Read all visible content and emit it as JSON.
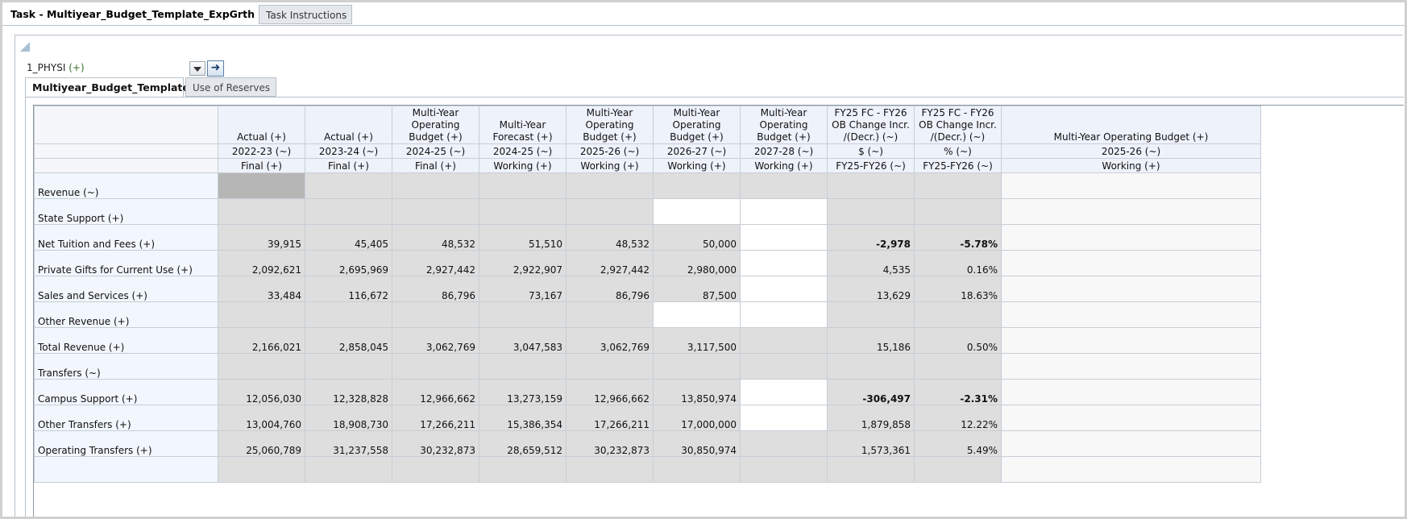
{
  "task_tabs": {
    "active": "Task - Multiyear_Budget_Template_ExpGrth",
    "inactive": "Task Instructions"
  },
  "pov": {
    "value": "1_PHYSI",
    "suffix": "(+)"
  },
  "icons": {
    "collapse": "collapse-triangle-icon",
    "dropdown": "chevron-down-icon",
    "go": "arrow-right-icon"
  },
  "inner_tabs": {
    "active": "Multiyear_Budget_Template",
    "inactive": "Use of Reserves"
  },
  "columns": [
    {
      "h1": "Actual (+)",
      "h2": "2022-23 (~)",
      "h3": "Final (+)"
    },
    {
      "h1": "Actual (+)",
      "h2": "2023-24 (~)",
      "h3": "Final (+)"
    },
    {
      "h1": "Multi-Year Operating Budget (+)",
      "h2": "2024-25 (~)",
      "h3": "Final (+)"
    },
    {
      "h1": "Multi-Year Forecast (+)",
      "h2": "2024-25 (~)",
      "h3": "Working (+)"
    },
    {
      "h1": "Multi-Year Operating Budget (+)",
      "h2": "2025-26 (~)",
      "h3": "Working (+)"
    },
    {
      "h1": "Multi-Year Operating Budget (+)",
      "h2": "2026-27 (~)",
      "h3": "Working (+)"
    },
    {
      "h1": "Multi-Year Operating Budget (+)",
      "h2": "2027-28 (~)",
      "h3": "Working (+)"
    },
    {
      "h1": "FY25 FC - FY26 OB Change Incr. /(Decr.) (~)",
      "h2": "$ (~)",
      "h3": "FY25-FY26 (~)"
    },
    {
      "h1": "FY25 FC - FY26 OB Change Incr. /(Decr.) (~)",
      "h2": "% (~)",
      "h3": "FY25-FY26 (~)"
    },
    {
      "h1": "Multi-Year Operating Budget (+)",
      "h2": "2025-26 (~)",
      "h3": "Working (+)"
    }
  ],
  "rows": [
    {
      "label": "Revenue (~)",
      "values": [
        "",
        "",
        "",
        "",
        "",
        "",
        "",
        "",
        "",
        ""
      ]
    },
    {
      "label": "State Support (+)",
      "values": [
        "",
        "",
        "",
        "",
        "",
        "",
        "",
        "",
        "",
        ""
      ]
    },
    {
      "label": "Net Tuition and Fees (+)",
      "values": [
        "39,915",
        "45,405",
        "48,532",
        "51,510",
        "48,532",
        "50,000",
        "",
        "-2,978",
        "-5.78%",
        ""
      ]
    },
    {
      "label": "Private Gifts for Current Use (+)",
      "values": [
        "2,092,621",
        "2,695,969",
        "2,927,442",
        "2,922,907",
        "2,927,442",
        "2,980,000",
        "",
        "4,535",
        "0.16%",
        ""
      ]
    },
    {
      "label": "Sales and Services (+)",
      "values": [
        "33,484",
        "116,672",
        "86,796",
        "73,167",
        "86,796",
        "87,500",
        "",
        "13,629",
        "18.63%",
        ""
      ]
    },
    {
      "label": "Other Revenue (+)",
      "values": [
        "",
        "",
        "",
        "",
        "",
        "",
        "",
        "",
        "",
        ""
      ]
    },
    {
      "label": "Total Revenue (+)",
      "values": [
        "2,166,021",
        "2,858,045",
        "3,062,769",
        "3,047,583",
        "3,062,769",
        "3,117,500",
        "",
        "15,186",
        "0.50%",
        ""
      ]
    },
    {
      "label": "Transfers (~)",
      "values": [
        "",
        "",
        "",
        "",
        "",
        "",
        "",
        "",
        "",
        ""
      ]
    },
    {
      "label": "Campus Support (+)",
      "values": [
        "12,056,030",
        "12,328,828",
        "12,966,662",
        "13,273,159",
        "12,966,662",
        "13,850,974",
        "",
        "-306,497",
        "-2.31%",
        ""
      ]
    },
    {
      "label": "Other Transfers (+)",
      "values": [
        "13,004,760",
        "18,908,730",
        "17,266,211",
        "15,386,354",
        "17,266,211",
        "17,000,000",
        "",
        "1,879,858",
        "12.22%",
        ""
      ]
    },
    {
      "label": "Operating Transfers (+)",
      "values": [
        "25,060,789",
        "31,237,558",
        "30,232,873",
        "28,659,512",
        "30,232,873",
        "30,850,974",
        "",
        "1,573,361",
        "5.49%",
        ""
      ]
    },
    {
      "label": "",
      "values": [
        "",
        "",
        "",
        "",
        "",
        "",
        "",
        "",
        "",
        ""
      ]
    }
  ]
}
